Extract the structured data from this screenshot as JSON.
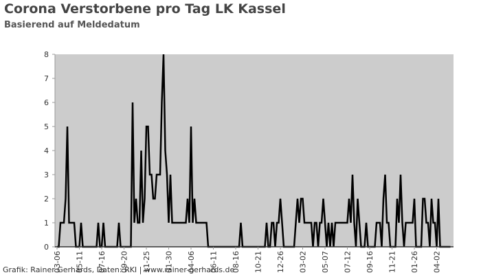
{
  "chart_data": {
    "type": "line",
    "title": "Corona Verstorbene pro Tag LK Kassel",
    "subtitle": "Basierend auf Meldedatum",
    "source": "Grafik: Rainer Gerhards, Daten: RKI | www.rainer-gerhards.de",
    "color": "#000000",
    "background": "#cccccc",
    "ylim": [
      0,
      8
    ],
    "yticks": [
      0,
      1,
      2,
      3,
      4,
      5,
      6,
      7,
      8
    ],
    "categories": [
      "03-06",
      null,
      null,
      null,
      null,
      null,
      null,
      null,
      null,
      null,
      null,
      null,
      null,
      "05-11",
      null,
      null,
      null,
      null,
      null,
      null,
      null,
      null,
      null,
      null,
      null,
      null,
      "07-16",
      null,
      null,
      null,
      null,
      null,
      null,
      null,
      null,
      null,
      null,
      null,
      null,
      "09-20",
      null,
      null,
      null,
      null,
      null,
      null,
      null,
      null,
      null,
      null,
      null,
      null,
      "11-25",
      null,
      null,
      null,
      null,
      null,
      null,
      null,
      null,
      null,
      null,
      null,
      null,
      "01-30",
      null,
      null,
      null,
      null,
      null,
      null,
      null,
      null,
      null,
      null,
      null,
      null,
      "04-06",
      null,
      null,
      null,
      null,
      null,
      null,
      null,
      null,
      null,
      null,
      null,
      null,
      "06-11",
      null,
      null,
      null,
      null,
      null,
      null,
      null,
      null,
      null,
      null,
      null,
      null,
      "08-16",
      null,
      null,
      null,
      null,
      null,
      null,
      null,
      null,
      null,
      null,
      null,
      null,
      "10-21",
      null,
      null,
      null,
      null,
      null,
      null,
      null,
      null,
      null,
      null,
      null,
      null,
      "12-26",
      null,
      null,
      null,
      null,
      null,
      null,
      null,
      null,
      null,
      null,
      null,
      null,
      "03-02",
      null,
      null,
      null,
      null,
      null,
      null,
      null,
      null,
      null,
      null,
      null,
      null,
      "05-07",
      null,
      null,
      null,
      null,
      null,
      null,
      null,
      null,
      null,
      null,
      null,
      null,
      "07-12",
      null,
      null,
      null,
      null,
      null,
      null,
      null,
      null,
      null,
      null,
      null,
      null,
      "09-16",
      null,
      null,
      null,
      null,
      null,
      null,
      null,
      null,
      null,
      null,
      null,
      null,
      "11-21",
      null,
      null,
      null,
      null,
      null,
      null,
      null,
      null,
      null,
      null,
      null,
      null,
      "01-26",
      null,
      null,
      null,
      null,
      null,
      null,
      null,
      null,
      null,
      null,
      null,
      null,
      "04-02",
      null,
      null,
      null,
      null,
      null,
      null,
      null,
      null
    ],
    "values": [
      0,
      0,
      1,
      1,
      1,
      2,
      5,
      1,
      1,
      1,
      1,
      0,
      0,
      0,
      1,
      0,
      0,
      0,
      0,
      0,
      0,
      0,
      0,
      0,
      1,
      0,
      0,
      1,
      0,
      0,
      0,
      0,
      0,
      0,
      0,
      0,
      1,
      0,
      0,
      0,
      0,
      0,
      0,
      0,
      6,
      1,
      2,
      1,
      1,
      4,
      1,
      2,
      5,
      5,
      3,
      3,
      2,
      2,
      3,
      3,
      3,
      6,
      8,
      4,
      3,
      1,
      3,
      1,
      1,
      1,
      1,
      1,
      1,
      1,
      1,
      1,
      2,
      1,
      5,
      1,
      2,
      1,
      1,
      1,
      1,
      1,
      1,
      1,
      0,
      0,
      0,
      0,
      0,
      0,
      0,
      0,
      0,
      0,
      0,
      0,
      0,
      0,
      0,
      0,
      0,
      0,
      0,
      1,
      0,
      0,
      0,
      0,
      0,
      0,
      0,
      0,
      0,
      0,
      0,
      0,
      0,
      0,
      1,
      0,
      0,
      1,
      1,
      0,
      1,
      1,
      2,
      1,
      0,
      0,
      0,
      0,
      0,
      0,
      0,
      1,
      2,
      1,
      2,
      2,
      1,
      1,
      1,
      1,
      1,
      0,
      1,
      1,
      0,
      1,
      1,
      2,
      1,
      0,
      1,
      0,
      1,
      0,
      1,
      1,
      1,
      1,
      1,
      1,
      1,
      1,
      2,
      1,
      3,
      1,
      0,
      2,
      1,
      0,
      0,
      0,
      1,
      0,
      0,
      0,
      0,
      0,
      1,
      1,
      1,
      0,
      2,
      3,
      1,
      1,
      0,
      0,
      0,
      0,
      2,
      1,
      3,
      1,
      0,
      1,
      1,
      1,
      1,
      1,
      2,
      0,
      0,
      0,
      0,
      2,
      2,
      1,
      1,
      0,
      2,
      1,
      1,
      0,
      2,
      0,
      0,
      0,
      0,
      0,
      0,
      0
    ]
  }
}
